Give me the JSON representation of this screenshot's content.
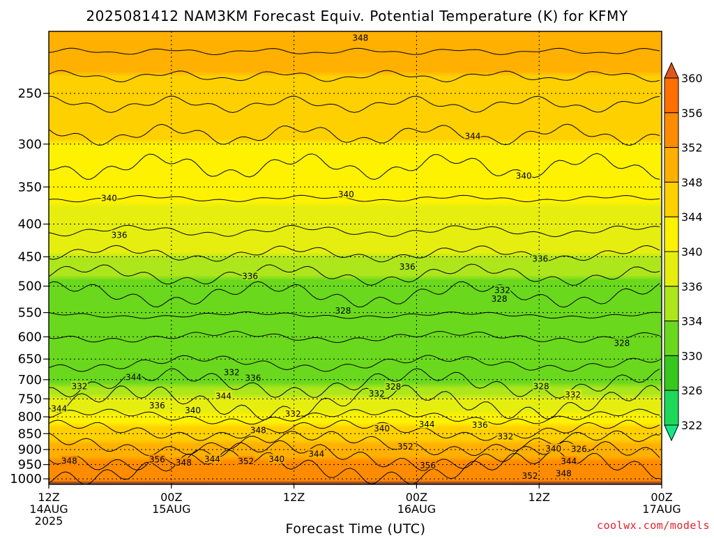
{
  "title": "2025081412 NAM3KM Forecast Equiv. Potential Temperature (K) for KFMY",
  "credit": "coolwx.com/models",
  "chart_data": {
    "type": "heatmap",
    "title": "2025081412 NAM3KM Forecast Equiv. Potential Temperature (K) for KFMY",
    "xlabel": "Forecast Time (UTC)",
    "ylabel": "",
    "x_range": [
      0,
      60
    ],
    "y_range": [
      200,
      1020
    ],
    "y_scale": "log",
    "y_inverted": true,
    "grid": true,
    "x_ticks": [
      {
        "value": 0,
        "lines": [
          "12Z",
          "14AUG",
          "2025"
        ]
      },
      {
        "value": 12,
        "lines": [
          "00Z",
          "15AUG"
        ]
      },
      {
        "value": 24,
        "lines": [
          "12Z"
        ]
      },
      {
        "value": 36,
        "lines": [
          "00Z",
          "16AUG"
        ]
      },
      {
        "value": 48,
        "lines": [
          "12Z"
        ]
      },
      {
        "value": 60,
        "lines": [
          "00Z",
          "17AUG"
        ]
      }
    ],
    "y_ticks": [
      250,
      300,
      350,
      400,
      450,
      500,
      550,
      600,
      650,
      700,
      750,
      800,
      850,
      900,
      950,
      1000
    ],
    "colorbar": {
      "labels": [
        322,
        326,
        330,
        334,
        336,
        340,
        344,
        348,
        352,
        356,
        360
      ],
      "colors": [
        "#12e888",
        "#1ed85a",
        "#36c81c",
        "#6ad81c",
        "#aee61c",
        "#e6ee10",
        "#fff200",
        "#ffd000",
        "#ffb000",
        "#ff8c00",
        "#ff7000",
        "#e0561c"
      ]
    },
    "profile": [
      {
        "p": 200,
        "theta_e": 350
      },
      {
        "p": 250,
        "theta_e": 347
      },
      {
        "p": 300,
        "theta_e": 344
      },
      {
        "p": 350,
        "theta_e": 341
      },
      {
        "p": 400,
        "theta_e": 339
      },
      {
        "p": 450,
        "theta_e": 336
      },
      {
        "p": 500,
        "theta_e": 333
      },
      {
        "p": 550,
        "theta_e": 331
      },
      {
        "p": 600,
        "theta_e": 330
      },
      {
        "p": 650,
        "theta_e": 331
      },
      {
        "p": 700,
        "theta_e": 333
      },
      {
        "p": 750,
        "theta_e": 337
      },
      {
        "p": 800,
        "theta_e": 341
      },
      {
        "p": 850,
        "theta_e": 346
      },
      {
        "p": 900,
        "theta_e": 350
      },
      {
        "p": 950,
        "theta_e": 353
      },
      {
        "p": 1000,
        "theta_e": 356
      }
    ],
    "contour_labels": [
      {
        "t": 30.5,
        "p": 205,
        "text": "348"
      },
      {
        "t": 41.5,
        "p": 292,
        "text": "344"
      },
      {
        "t": 46.5,
        "p": 337,
        "text": "340"
      },
      {
        "t": 5.9,
        "p": 365,
        "text": "340"
      },
      {
        "t": 29.1,
        "p": 360,
        "text": "340"
      },
      {
        "t": 6.9,
        "p": 417,
        "text": "336"
      },
      {
        "t": 35.1,
        "p": 467,
        "text": "336"
      },
      {
        "t": 48.1,
        "p": 454,
        "text": "336"
      },
      {
        "t": 19.7,
        "p": 483,
        "text": "336"
      },
      {
        "t": 44.4,
        "p": 508,
        "text": "332"
      },
      {
        "t": 44.1,
        "p": 524,
        "text": "328"
      },
      {
        "t": 28.8,
        "p": 547,
        "text": "328"
      },
      {
        "t": 56.1,
        "p": 615,
        "text": "328"
      },
      {
        "t": 3.0,
        "p": 718,
        "text": "332"
      },
      {
        "t": 8.3,
        "p": 695,
        "text": "344"
      },
      {
        "t": 17.9,
        "p": 683,
        "text": "332"
      },
      {
        "t": 20.0,
        "p": 697,
        "text": "336"
      },
      {
        "t": 17.1,
        "p": 744,
        "text": "344"
      },
      {
        "t": 32.1,
        "p": 737,
        "text": "332"
      },
      {
        "t": 33.7,
        "p": 719,
        "text": "328"
      },
      {
        "t": 48.2,
        "p": 718,
        "text": "328"
      },
      {
        "t": 51.3,
        "p": 740,
        "text": "332"
      },
      {
        "t": 1.0,
        "p": 778,
        "text": "344"
      },
      {
        "t": 10.6,
        "p": 769,
        "text": "336"
      },
      {
        "t": 14.1,
        "p": 783,
        "text": "340"
      },
      {
        "t": 23.9,
        "p": 793,
        "text": "332"
      },
      {
        "t": 20.5,
        "p": 841,
        "text": "348"
      },
      {
        "t": 32.6,
        "p": 836,
        "text": "340"
      },
      {
        "t": 37.0,
        "p": 823,
        "text": "344"
      },
      {
        "t": 42.2,
        "p": 825,
        "text": "336"
      },
      {
        "t": 44.7,
        "p": 860,
        "text": "332"
      },
      {
        "t": 34.9,
        "p": 892,
        "text": "352"
      },
      {
        "t": 49.4,
        "p": 899,
        "text": "340"
      },
      {
        "t": 51.9,
        "p": 900,
        "text": "326"
      },
      {
        "t": 50.9,
        "p": 940,
        "text": "344"
      },
      {
        "t": 2.0,
        "p": 939,
        "text": "348"
      },
      {
        "t": 10.6,
        "p": 934,
        "text": "356"
      },
      {
        "t": 13.2,
        "p": 945,
        "text": "348"
      },
      {
        "t": 16.0,
        "p": 933,
        "text": "344"
      },
      {
        "t": 19.3,
        "p": 940,
        "text": "352"
      },
      {
        "t": 22.3,
        "p": 933,
        "text": "340"
      },
      {
        "t": 26.2,
        "p": 916,
        "text": "344"
      },
      {
        "t": 37.1,
        "p": 954,
        "text": "356"
      },
      {
        "t": 47.1,
        "p": 991,
        "text": "352"
      },
      {
        "t": 50.4,
        "p": 982,
        "text": "348"
      }
    ]
  }
}
